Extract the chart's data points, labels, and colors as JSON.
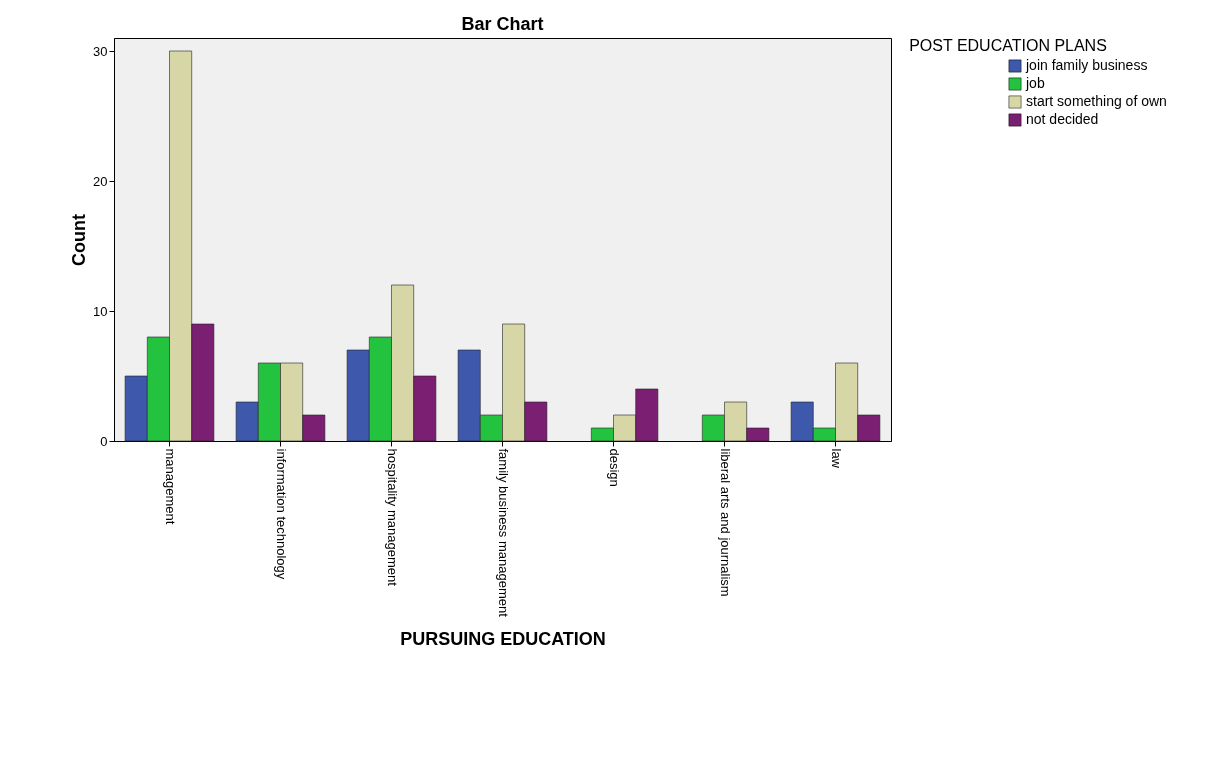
{
  "chart_data": {
    "type": "bar",
    "title": "Bar Chart",
    "xlabel": "PURSUING EDUCATION",
    "ylabel": "Count",
    "legend_title": "POST EDUCATION PLANS",
    "categories": [
      "management",
      "information technology",
      "hospitality management",
      "family business management",
      "design",
      "liberal arts and journalism",
      "law"
    ],
    "series": [
      {
        "name": "join family business",
        "color": "#3e58ac",
        "values": [
          5,
          3,
          7,
          7,
          null,
          null,
          3
        ]
      },
      {
        "name": "job",
        "color": "#24c33f",
        "values": [
          8,
          6,
          8,
          2,
          1,
          2,
          1
        ]
      },
      {
        "name": "start something of own",
        "color": "#d6d6a6",
        "values": [
          30,
          6,
          12,
          9,
          2,
          3,
          6
        ]
      },
      {
        "name": "not decided",
        "color": "#7b1f72",
        "values": [
          9,
          2,
          5,
          3,
          4,
          1,
          2
        ]
      }
    ],
    "ylim": [
      0,
      31
    ],
    "yticks": [
      0,
      10,
      20,
      30
    ],
    "grid": false,
    "legend": "top right"
  }
}
